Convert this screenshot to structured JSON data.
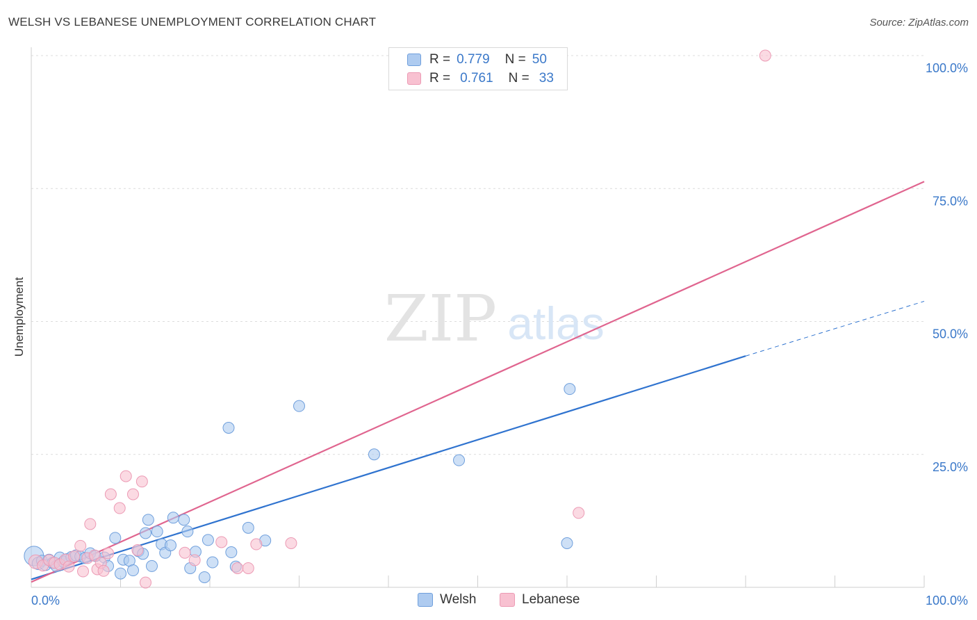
{
  "header": {
    "title": "WELSH VS LEBANESE UNEMPLOYMENT CORRELATION CHART",
    "source": "Source: ZipAtlas.com"
  },
  "watermark": {
    "zip": "ZIP",
    "atlas": "atlas"
  },
  "legend_top": {
    "rows": [
      {
        "r_label": "R =",
        "r_value": "0.779",
        "n_label": "N =",
        "n_value": "50"
      },
      {
        "r_label": "R =",
        "r_value": "0.761",
        "n_label": "N =",
        "n_value": "33"
      }
    ]
  },
  "legend_bottom": {
    "welsh": "Welsh",
    "lebanese": "Lebanese"
  },
  "colors": {
    "welsh_fill": "#aecbf0",
    "welsh_stroke": "#6f9fdc",
    "welsh_line": "#2f73cf",
    "lebanese_fill": "#f8c1d1",
    "lebanese_stroke": "#ec9ab4",
    "lebanese_line": "#e0658f",
    "tick_label": "#3a78c9"
  },
  "chart_data": {
    "type": "scatter",
    "title": "WELSH VS LEBANESE UNEMPLOYMENT CORRELATION CHART",
    "xlabel": "",
    "ylabel": "Unemployment",
    "xlim": [
      0,
      100
    ],
    "ylim": [
      0,
      100
    ],
    "x_tick_labels": [
      "0.0%",
      "100.0%"
    ],
    "y_ticks": [
      {
        "value": 25,
        "label": "25.0%"
      },
      {
        "value": 50,
        "label": "50.0%"
      },
      {
        "value": 75,
        "label": "75.0%"
      },
      {
        "value": 100,
        "label": "100.0%"
      }
    ],
    "grid": true,
    "legend": "bottom",
    "series": [
      {
        "name": "Welsh",
        "r": 0.779,
        "n": 50,
        "trend": {
          "start": [
            0,
            1.5
          ],
          "end": [
            80,
            43.5
          ],
          "dashed_end": [
            100,
            53.8
          ]
        },
        "points": [
          [
            0.3,
            5.9,
            14
          ],
          [
            0.8,
            4.5,
            9
          ],
          [
            1.2,
            5.0,
            8
          ],
          [
            1.6,
            4.2,
            8
          ],
          [
            2.0,
            5.2,
            8
          ],
          [
            2.4,
            4.6,
            8
          ],
          [
            2.8,
            4.0,
            8
          ],
          [
            3.2,
            5.6,
            8
          ],
          [
            3.6,
            4.8,
            8
          ],
          [
            4.0,
            5.3,
            8
          ],
          [
            4.5,
            5.7,
            8
          ],
          [
            5.0,
            6.0,
            8
          ],
          [
            5.5,
            5.8,
            8
          ],
          [
            6.0,
            5.5,
            8
          ],
          [
            6.6,
            6.4,
            8
          ],
          [
            7.2,
            5.9,
            8
          ],
          [
            8.2,
            5.6,
            8
          ],
          [
            8.6,
            4.0,
            8
          ],
          [
            9.4,
            9.3,
            8
          ],
          [
            10.0,
            2.6,
            8
          ],
          [
            10.3,
            5.2,
            8
          ],
          [
            11.0,
            5.0,
            8
          ],
          [
            11.4,
            3.2,
            8
          ],
          [
            12.0,
            6.8,
            8
          ],
          [
            12.5,
            6.3,
            8
          ],
          [
            12.8,
            10.2,
            8
          ],
          [
            13.1,
            12.7,
            8
          ],
          [
            13.5,
            4.0,
            8
          ],
          [
            14.1,
            10.5,
            8
          ],
          [
            14.6,
            8.1,
            8
          ],
          [
            15.0,
            6.5,
            8
          ],
          [
            15.6,
            7.9,
            8
          ],
          [
            15.9,
            13.1,
            8
          ],
          [
            17.1,
            12.7,
            8
          ],
          [
            17.5,
            10.5,
            8
          ],
          [
            17.8,
            3.6,
            8
          ],
          [
            18.4,
            6.7,
            8
          ],
          [
            19.4,
            1.9,
            8
          ],
          [
            19.8,
            8.9,
            8
          ],
          [
            20.3,
            4.7,
            8
          ],
          [
            22.1,
            30.0,
            8
          ],
          [
            22.4,
            6.6,
            8
          ],
          [
            22.9,
            3.9,
            8
          ],
          [
            24.3,
            11.2,
            8
          ],
          [
            26.2,
            8.8,
            8
          ],
          [
            30.0,
            34.1,
            8
          ],
          [
            38.4,
            25.0,
            8
          ],
          [
            47.9,
            23.9,
            8
          ],
          [
            60.0,
            8.3,
            8
          ],
          [
            60.3,
            37.3,
            8
          ]
        ]
      },
      {
        "name": "Lebanese",
        "r": 0.761,
        "n": 33,
        "trend": {
          "start": [
            0,
            1.0
          ],
          "end": [
            100,
            76.3
          ]
        },
        "points": [
          [
            0.5,
            4.8,
            10
          ],
          [
            1.3,
            4.1,
            8
          ],
          [
            2.0,
            5.1,
            8
          ],
          [
            2.6,
            4.6,
            8
          ],
          [
            3.2,
            4.3,
            8
          ],
          [
            3.8,
            5.2,
            8
          ],
          [
            4.2,
            3.9,
            8
          ],
          [
            4.8,
            5.8,
            8
          ],
          [
            5.5,
            7.8,
            8
          ],
          [
            5.8,
            3.0,
            8
          ],
          [
            6.3,
            5.5,
            8
          ],
          [
            6.6,
            11.9,
            8
          ],
          [
            7.1,
            6.0,
            8
          ],
          [
            7.4,
            3.4,
            8
          ],
          [
            7.8,
            4.6,
            8
          ],
          [
            8.1,
            3.1,
            8
          ],
          [
            8.6,
            6.4,
            8
          ],
          [
            8.9,
            17.5,
            8
          ],
          [
            9.9,
            14.9,
            8
          ],
          [
            10.6,
            20.9,
            8
          ],
          [
            11.4,
            17.5,
            8
          ],
          [
            11.9,
            7.0,
            8
          ],
          [
            12.4,
            19.9,
            8
          ],
          [
            12.8,
            0.9,
            8
          ],
          [
            17.2,
            6.5,
            8
          ],
          [
            18.3,
            5.1,
            8
          ],
          [
            21.3,
            8.5,
            8
          ],
          [
            23.1,
            3.6,
            8
          ],
          [
            24.3,
            3.6,
            8
          ],
          [
            25.2,
            8.1,
            8
          ],
          [
            29.1,
            8.3,
            8
          ],
          [
            61.3,
            14.0,
            8
          ],
          [
            82.2,
            100.0,
            8
          ]
        ]
      }
    ]
  }
}
